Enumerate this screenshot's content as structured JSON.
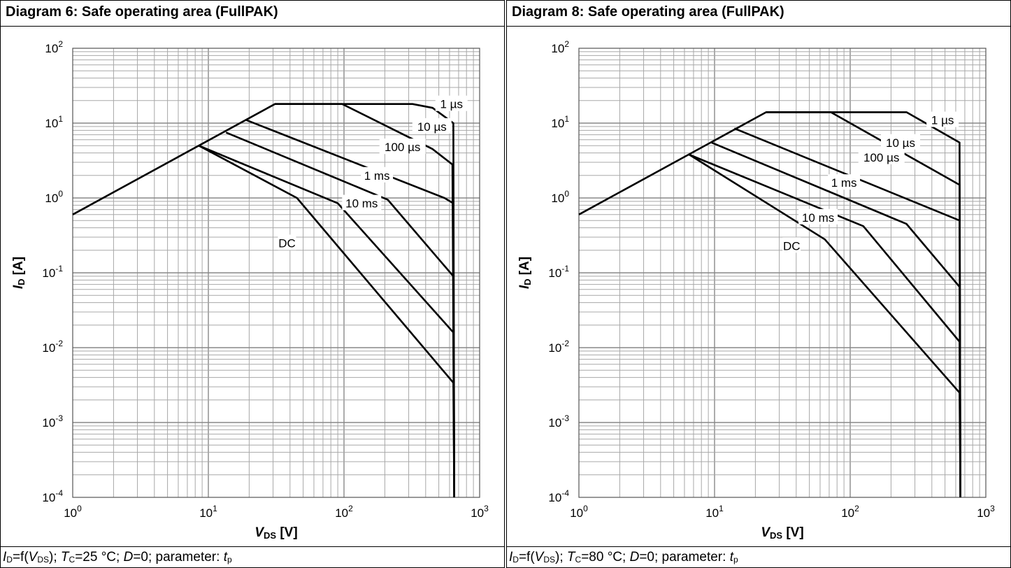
{
  "chart_data": [
    {
      "type": "line",
      "title": "Diagram 6: Safe operating area (FullPAK)",
      "caption": {
        "id": "I",
        "id_sub": "D",
        "eq": "=f(",
        "v": "V",
        "v_sub": "DS",
        "tc_pre": "); ",
        "t": "T",
        "t_sub": "C",
        "tc_val": "=25 °C; ",
        "d": "D",
        "rest": "=0; parameter: ",
        "tp": "t",
        "tp_sub": "p"
      },
      "xlabel": {
        "main": "V",
        "sub": "DS",
        "unit": " [V]"
      },
      "ylabel": {
        "main": "I",
        "sub": "D",
        "unit": " [A]"
      },
      "xscale": "log",
      "yscale": "log",
      "xlim": [
        1,
        1000
      ],
      "ylim": [
        0.0001,
        100
      ],
      "x_ticks": [
        {
          "base": "10",
          "exp": "0"
        },
        {
          "base": "10",
          "exp": "1"
        },
        {
          "base": "10",
          "exp": "2"
        },
        {
          "base": "10",
          "exp": "3"
        }
      ],
      "y_ticks": [
        {
          "base": "10",
          "exp": "2"
        },
        {
          "base": "10",
          "exp": "1"
        },
        {
          "base": "10",
          "exp": "0"
        },
        {
          "base": "10",
          "exp": "-1"
        },
        {
          "base": "10",
          "exp": "-2"
        },
        {
          "base": "10",
          "exp": "-3"
        },
        {
          "base": "10",
          "exp": "-4"
        }
      ],
      "grid": true,
      "series": [
        {
          "name": "1 µs",
          "points": [
            [
              1,
              0.6
            ],
            [
              31,
              18
            ],
            [
              320,
              18
            ],
            [
              450,
              16
            ],
            [
              640,
              10
            ],
            [
              650,
              0.0001
            ]
          ]
        },
        {
          "name": "10 µs",
          "points": [
            [
              31,
              18
            ],
            [
              97,
              18
            ],
            [
              450,
              4.5
            ],
            [
              630,
              2.8
            ],
            [
              650,
              0.0001
            ]
          ]
        },
        {
          "name": "100 µs",
          "points": [
            [
              19,
              11
            ],
            [
              550,
              1.0
            ],
            [
              640,
              0.85
            ],
            [
              650,
              0.0001
            ]
          ]
        },
        {
          "name": "1 ms",
          "points": [
            [
              13.5,
              7.5
            ],
            [
              210,
              0.95
            ],
            [
              640,
              0.09
            ],
            [
              650,
              0.0001
            ]
          ]
        },
        {
          "name": "10 ms",
          "points": [
            [
              8.5,
              5
            ],
            [
              90,
              0.85
            ],
            [
              640,
              0.016
            ],
            [
              650,
              0.0001
            ]
          ]
        },
        {
          "name": "DC",
          "points": [
            [
              8.5,
              5
            ],
            [
              45,
              1.0
            ],
            [
              640,
              0.0034
            ],
            [
              650,
              0.0001
            ]
          ]
        }
      ],
      "labels": [
        {
          "text": "1 µs",
          "x": 620,
          "y": 18
        },
        {
          "text": "10 µs",
          "x": 445,
          "y": 9
        },
        {
          "text": "100 µs",
          "x": 270,
          "y": 4.8
        },
        {
          "text": "1 ms",
          "x": 175,
          "y": 2.0
        },
        {
          "text": "10 ms",
          "x": 135,
          "y": 0.85
        },
        {
          "text": "DC",
          "x": 38,
          "y": 0.25
        }
      ]
    },
    {
      "type": "line",
      "title": "Diagram 8: Safe operating area (FullPAK)",
      "caption": {
        "id": "I",
        "id_sub": "D",
        "eq": "=f(",
        "v": "V",
        "v_sub": "DS",
        "tc_pre": "); ",
        "t": "T",
        "t_sub": "C",
        "tc_val": "=80 °C; ",
        "d": "D",
        "rest": "=0; parameter: ",
        "tp": "t",
        "tp_sub": "p"
      },
      "xlabel": {
        "main": "V",
        "sub": "DS",
        "unit": " [V]"
      },
      "ylabel": {
        "main": "I",
        "sub": "D",
        "unit": " [A]"
      },
      "xscale": "log",
      "yscale": "log",
      "xlim": [
        1,
        1000
      ],
      "ylim": [
        0.0001,
        100
      ],
      "x_ticks": [
        {
          "base": "10",
          "exp": "0"
        },
        {
          "base": "10",
          "exp": "1"
        },
        {
          "base": "10",
          "exp": "2"
        },
        {
          "base": "10",
          "exp": "3"
        }
      ],
      "y_ticks": [
        {
          "base": "10",
          "exp": "2"
        },
        {
          "base": "10",
          "exp": "1"
        },
        {
          "base": "10",
          "exp": "0"
        },
        {
          "base": "10",
          "exp": "-1"
        },
        {
          "base": "10",
          "exp": "-2"
        },
        {
          "base": "10",
          "exp": "-3"
        },
        {
          "base": "10",
          "exp": "-4"
        }
      ],
      "grid": true,
      "series": [
        {
          "name": "1 µs",
          "points": [
            [
              1,
              0.6
            ],
            [
              24,
              14
            ],
            [
              260,
              14
            ],
            [
              640,
              5.5
            ],
            [
              650,
              0.0001
            ]
          ]
        },
        {
          "name": "10 µs",
          "points": [
            [
              24,
              14
            ],
            [
              72,
              14
            ],
            [
              640,
              1.5
            ],
            [
              650,
              0.0001
            ]
          ]
        },
        {
          "name": "100 µs",
          "points": [
            [
              14,
              8.5
            ],
            [
              640,
              0.5
            ],
            [
              650,
              0.0001
            ]
          ]
        },
        {
          "name": "1 ms",
          "points": [
            [
              9.5,
              5.5
            ],
            [
              260,
              0.45
            ],
            [
              640,
              0.065
            ],
            [
              650,
              0.0001
            ]
          ]
        },
        {
          "name": "10 ms",
          "points": [
            [
              6.5,
              3.8
            ],
            [
              125,
              0.42
            ],
            [
              640,
              0.012
            ],
            [
              650,
              0.0001
            ]
          ]
        },
        {
          "name": "DC",
          "points": [
            [
              6.5,
              3.8
            ],
            [
              65,
              0.28
            ],
            [
              640,
              0.0025
            ],
            [
              650,
              0.0001
            ]
          ]
        }
      ],
      "labels": [
        {
          "text": "1 µs",
          "x": 480,
          "y": 11
        },
        {
          "text": "10 µs",
          "x": 235,
          "y": 5.5
        },
        {
          "text": "100 µs",
          "x": 170,
          "y": 3.5
        },
        {
          "text": "1 ms",
          "x": 90,
          "y": 1.6
        },
        {
          "text": "10 ms",
          "x": 58,
          "y": 0.55
        },
        {
          "text": "DC",
          "x": 37,
          "y": 0.23
        }
      ]
    }
  ]
}
